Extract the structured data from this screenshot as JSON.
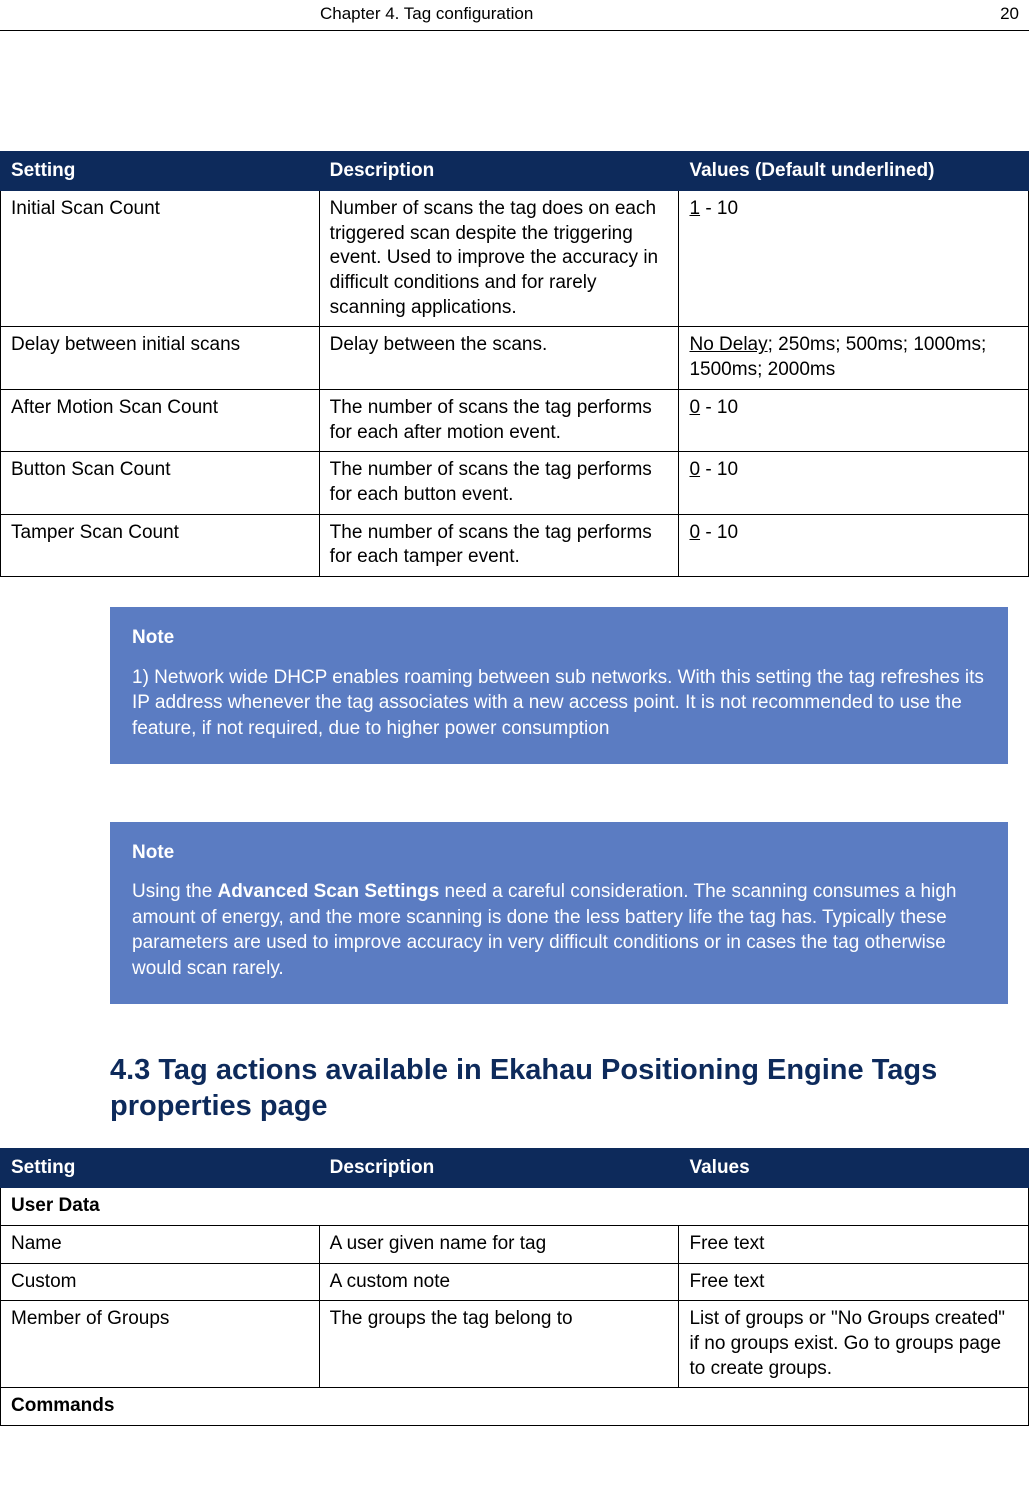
{
  "header": {
    "chapter": "Chapter 4. Tag configuration",
    "page": "20"
  },
  "colors": {
    "header_bg": "#0d2a5b",
    "header_fg": "#ffffff",
    "note_bg": "#5b7cc2",
    "note_fg": "#ffffff",
    "heading_color": "#0d2a5b"
  },
  "table1": {
    "headers": [
      "Setting",
      "Description",
      "Values (Default underlined)"
    ],
    "rows": [
      {
        "setting": "Initial Scan Count",
        "description": "Number of scans the tag does on each triggered scan despite the triggering event. Used to improve the accuracy in difficult conditions and for rarely scanning applications.",
        "default": "1",
        "rest": " - 10"
      },
      {
        "setting": "Delay between initial scans",
        "description": "Delay between the scans.",
        "default": "No Delay",
        "rest": "; 250ms; 500ms; 1000ms; 1500ms; 2000ms"
      },
      {
        "setting": "After Motion Scan Count",
        "description": "The number of scans the tag performs for each after motion event.",
        "default": "0",
        "rest": " - 10"
      },
      {
        "setting": "Button Scan Count",
        "description": "The number of scans the tag performs for each button event.",
        "default": "0",
        "rest": " - 10"
      },
      {
        "setting": "Tamper Scan Count",
        "description": "The number of scans the tag performs for each tamper event.",
        "default": "0",
        "rest": " - 10"
      }
    ]
  },
  "note1": {
    "title": "Note",
    "body": "1) Network wide DHCP enables roaming between sub networks. With this setting the tag refreshes its IP address whenever the tag associates with a new access point. It is not recommended to use the feature, if not required, due to higher power consumption"
  },
  "note2": {
    "title": "Note",
    "pre": "Using the ",
    "bold": "Advanced Scan Settings",
    "post": " need a careful consideration. The scanning consumes a high amount of energy, and the more scanning is done the less battery life the tag has. Typically these parameters are used to improve accuracy in very difficult conditions or in cases the tag otherwise would scan rarely."
  },
  "section_heading": "4.3  Tag actions available in Ekahau Positioning Engine Tags properties page",
  "table2": {
    "headers": [
      "Setting",
      "Description",
      "Values"
    ],
    "section1": "User Data",
    "rows": [
      {
        "setting": "Name",
        "description": "A user given name for tag",
        "values": "Free text"
      },
      {
        "setting": "Custom",
        "description": "A custom note",
        "values": "Free text"
      },
      {
        "setting": "Member of Groups",
        "description": "The groups the tag belong to",
        "values": "List of groups or \"No Groups created\" if no groups exist. Go to groups page to create groups."
      }
    ],
    "section2": "Commands"
  }
}
